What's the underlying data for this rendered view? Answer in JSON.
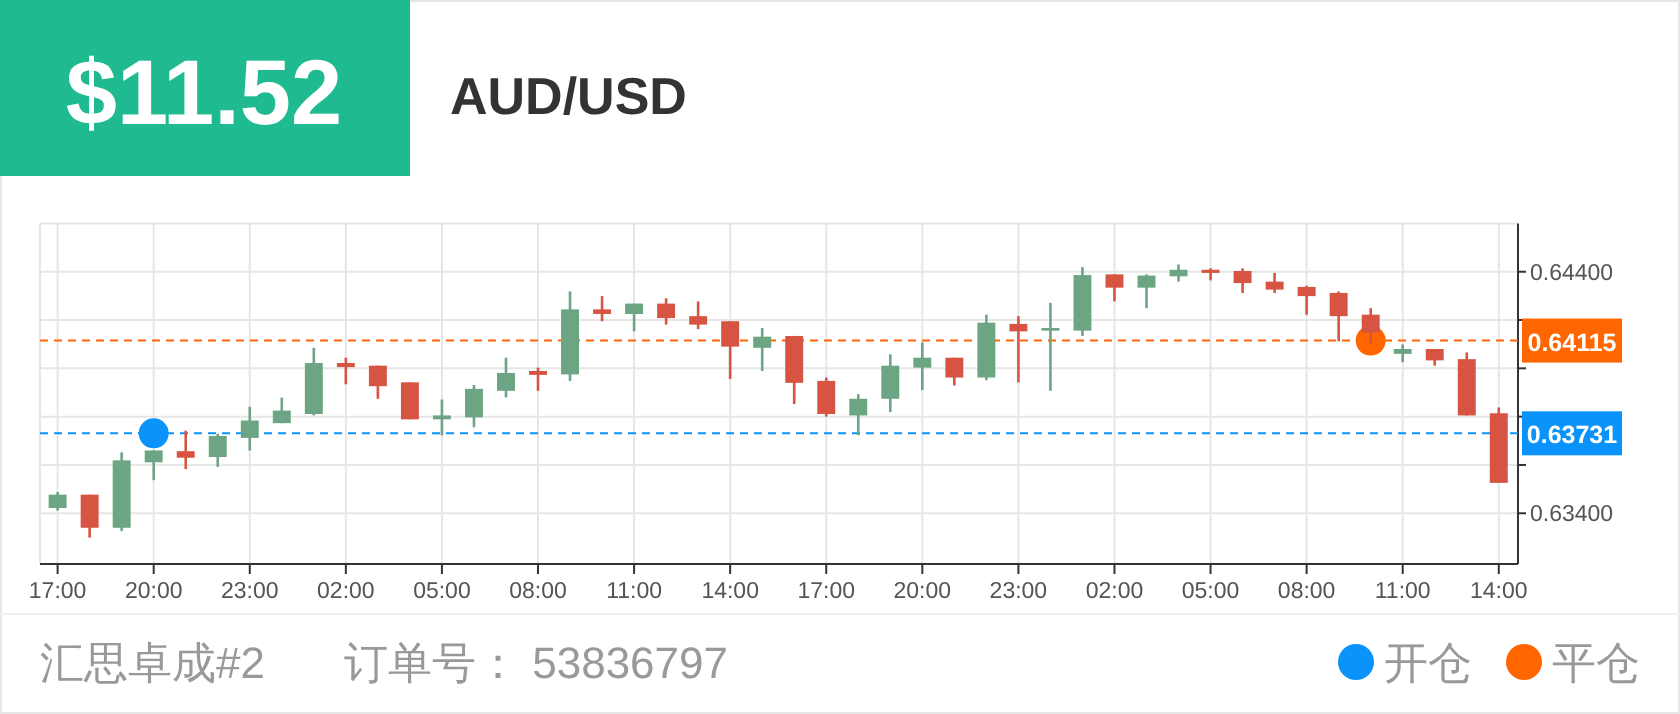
{
  "chart_data": {
    "type": "candlestick",
    "title": "AUD/USD",
    "annotations": [
      "$11.52",
      "汇思卓成#2",
      "订单号：  53836797"
    ],
    "x": [
      "2000-01-01T17:00",
      "2000-01-01T18:00",
      "2000-01-01T19:00",
      "2000-01-01T20:00",
      "2000-01-01T21:00",
      "2000-01-01T22:00",
      "2000-01-01T23:00",
      "2000-01-02T00:00",
      "2000-01-02T01:00",
      "2000-01-02T02:00",
      "2000-01-02T03:00",
      "2000-01-02T04:00",
      "2000-01-02T05:00",
      "2000-01-02T06:00",
      "2000-01-02T07:00",
      "2000-01-02T08:00",
      "2000-01-02T09:00",
      "2000-01-02T10:00",
      "2000-01-02T11:00",
      "2000-01-02T12:00",
      "2000-01-02T13:00",
      "2000-01-02T14:00",
      "2000-01-02T15:00",
      "2000-01-02T16:00",
      "2000-01-02T17:00",
      "2000-01-02T18:00",
      "2000-01-02T19:00",
      "2000-01-02T20:00",
      "2000-01-02T21:00",
      "2000-01-02T22:00",
      "2000-01-02T23:00",
      "2000-01-03T00:00",
      "2000-01-03T01:00",
      "2000-01-03T02:00",
      "2000-01-03T03:00",
      "2000-01-03T04:00",
      "2000-01-03T05:00",
      "2000-01-03T06:00",
      "2000-01-03T07:00",
      "2000-01-03T08:00",
      "2000-01-03T09:00",
      "2000-01-03T10:00",
      "2000-01-03T11:00",
      "2000-01-03T12:00",
      "2000-01-03T13:00",
      "2000-01-03T14:00"
    ],
    "ohlc": [
      [
        0.63422,
        0.63488,
        0.63411,
        0.63477
      ],
      [
        0.63477,
        0.63477,
        0.63299,
        0.6334
      ],
      [
        0.6334,
        0.63652,
        0.63326,
        0.63619
      ],
      [
        0.63611,
        0.6366,
        0.63537,
        0.6366
      ],
      [
        0.63657,
        0.63742,
        0.63583,
        0.6363
      ],
      [
        0.63633,
        0.63729,
        0.63592,
        0.6372
      ],
      [
        0.63712,
        0.63841,
        0.6366,
        0.63784
      ],
      [
        0.63773,
        0.63879,
        0.63773,
        0.63825
      ],
      [
        0.63811,
        0.64085,
        0.63805,
        0.64022
      ],
      [
        0.64022,
        0.64044,
        0.63934,
        0.64005
      ],
      [
        0.64011,
        0.64011,
        0.63874,
        0.63926
      ],
      [
        0.63942,
        0.63942,
        0.63789,
        0.63789
      ],
      [
        0.63789,
        0.63871,
        0.63723,
        0.63805
      ],
      [
        0.63797,
        0.63931,
        0.63756,
        0.63915
      ],
      [
        0.63907,
        0.64044,
        0.6388,
        0.63981
      ],
      [
        0.63989,
        0.64003,
        0.63907,
        0.63973
      ],
      [
        0.63975,
        0.64318,
        0.63948,
        0.64244
      ],
      [
        0.64244,
        0.64299,
        0.64195,
        0.64225
      ],
      [
        0.64225,
        0.64268,
        0.64153,
        0.64268
      ],
      [
        0.64268,
        0.6429,
        0.64181,
        0.64208
      ],
      [
        0.64216,
        0.64277,
        0.64162,
        0.64181
      ],
      [
        0.64195,
        0.64195,
        0.63956,
        0.6409
      ],
      [
        0.64085,
        0.64167,
        0.63989,
        0.64131
      ],
      [
        0.64134,
        0.64134,
        0.63852,
        0.6394
      ],
      [
        0.63948,
        0.63962,
        0.638,
        0.63811
      ],
      [
        0.63805,
        0.63893,
        0.63723,
        0.63874
      ],
      [
        0.63874,
        0.64058,
        0.63819,
        0.64011
      ],
      [
        0.64003,
        0.64107,
        0.6391,
        0.64044
      ],
      [
        0.64044,
        0.64044,
        0.63929,
        0.63962
      ],
      [
        0.63962,
        0.64222,
        0.63951,
        0.64189
      ],
      [
        0.64184,
        0.64216,
        0.63942,
        0.64153
      ],
      [
        0.64156,
        0.64271,
        0.63907,
        0.64167
      ],
      [
        0.64156,
        0.64419,
        0.64134,
        0.64386
      ],
      [
        0.64389,
        0.64389,
        0.64277,
        0.64334
      ],
      [
        0.64334,
        0.64389,
        0.64249,
        0.64384
      ],
      [
        0.64381,
        0.6443,
        0.64359,
        0.64408
      ],
      [
        0.64408,
        0.64414,
        0.64364,
        0.64395
      ],
      [
        0.64403,
        0.64414,
        0.64312,
        0.64353
      ],
      [
        0.64359,
        0.64395,
        0.64312,
        0.64326
      ],
      [
        0.64337,
        0.64342,
        0.64222,
        0.64299
      ],
      [
        0.64312,
        0.64318,
        0.64112,
        0.64216
      ],
      [
        0.64222,
        0.64249,
        0.641,
        0.64148
      ],
      [
        0.6406,
        0.64099,
        0.64025,
        0.6408
      ],
      [
        0.6408,
        0.6408,
        0.64011,
        0.64033
      ],
      [
        0.64038,
        0.64066,
        0.63805,
        0.63805
      ],
      [
        0.63814,
        0.63838,
        0.63526,
        0.63526
      ]
    ],
    "colors": [
      "#6ba583",
      "#d75442",
      "#6ba583",
      "#6ba583",
      "#d75442",
      "#6ba583",
      "#6ba583",
      "#6ba583",
      "#6ba583",
      "#d75442",
      "#d75442",
      "#d75442",
      "#6ba583",
      "#6ba583",
      "#6ba583",
      "#d75442",
      "#6ba583",
      "#d75442",
      "#6ba583",
      "#d75442",
      "#d75442",
      "#d75442",
      "#6ba583",
      "#d75442",
      "#d75442",
      "#6ba583",
      "#6ba583",
      "#6ba583",
      "#d75442",
      "#6ba583",
      "#d75442",
      "#6ba583",
      "#6ba583",
      "#d75442",
      "#6ba583",
      "#6ba583",
      "#d75442",
      "#d75442",
      "#d75442",
      "#d75442",
      "#d75442",
      "#d75442",
      "#6ba583",
      "#d75442",
      "#d75442",
      "#d75442"
    ],
    "series": [
      {
        "type": "scatter",
        "name": "开仓",
        "color": "#0a93fa",
        "x": [
          "2000-01-01T20:00"
        ],
        "values": [
          0.63731
        ]
      },
      {
        "type": "scatter",
        "name": "平仓",
        "color": "#ff6600",
        "x": [
          "2000-01-03T10:00"
        ],
        "values": [
          0.64115
        ]
      }
    ],
    "ref_lines": [
      {
        "axis": "y",
        "value": 0.64115,
        "label": "0.64115",
        "color": "#ff6600",
        "line_style": "dashed"
      },
      {
        "axis": "y",
        "value": 0.63731,
        "label": "0.63731",
        "color": "#0a93fa",
        "line_style": "dashed"
      }
    ],
    "xlim": [
      "2000-01-01T16:27",
      "2000-01-03T14:36"
    ],
    "ylim": [
      0.6319,
      0.646
    ],
    "xticks": [
      {
        "value": "2000-01-01T17:00",
        "label": "17:00"
      },
      {
        "value": "2000-01-01T20:00",
        "label": "20:00"
      },
      {
        "value": "2000-01-01T23:00",
        "label": "23:00"
      },
      {
        "value": "2000-01-02T02:00",
        "label": "02:00"
      },
      {
        "value": "2000-01-02T05:00",
        "label": "05:00"
      },
      {
        "value": "2000-01-02T08:00",
        "label": "08:00"
      },
      {
        "value": "2000-01-02T11:00",
        "label": "11:00"
      },
      {
        "value": "2000-01-02T14:00",
        "label": "14:00"
      },
      {
        "value": "2000-01-02T17:00",
        "label": "17:00"
      },
      {
        "value": "2000-01-02T20:00",
        "label": "20:00"
      },
      {
        "value": "2000-01-02T23:00",
        "label": "23:00"
      },
      {
        "value": "2000-01-03T02:00",
        "label": "02:00"
      },
      {
        "value": "2000-01-03T05:00",
        "label": "05:00"
      },
      {
        "value": "2000-01-03T08:00",
        "label": "08:00"
      },
      {
        "value": "2000-01-03T11:00",
        "label": "11:00"
      },
      {
        "value": "2000-01-03T14:00",
        "label": "14:00"
      }
    ],
    "yticks": [
      {
        "value": 0.634,
        "label": "0.63400"
      },
      {
        "value": 0.636,
        "label": null
      },
      {
        "value": 0.638,
        "label": null
      },
      {
        "value": 0.64,
        "label": null
      },
      {
        "value": 0.642,
        "label": null
      },
      {
        "value": 0.644,
        "label": "0.64400"
      }
    ],
    "grid": true,
    "legend": "bottom right"
  }
}
